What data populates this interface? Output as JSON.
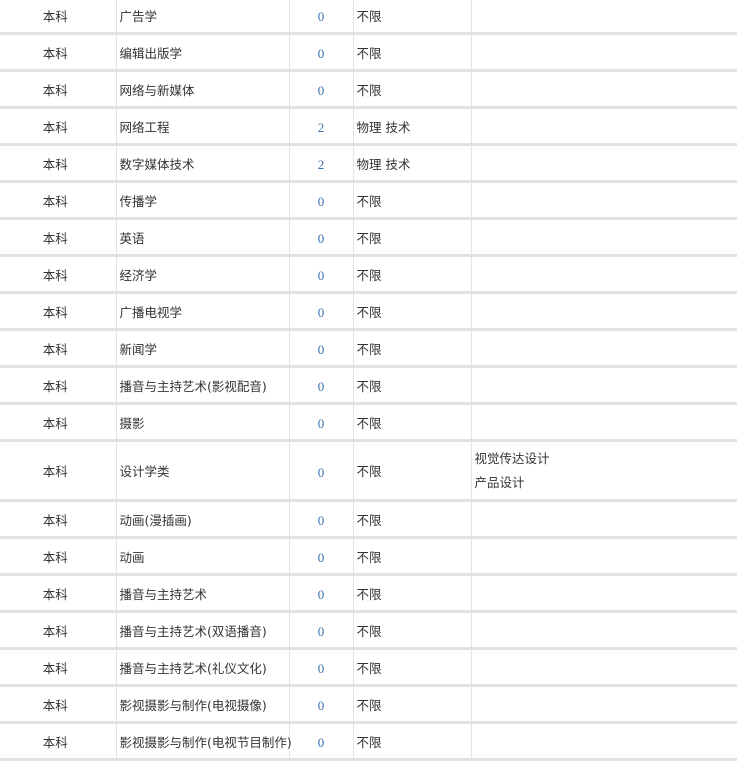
{
  "rows": [
    {
      "level": "本科",
      "major": "广告学",
      "count": "0",
      "subjects": "不限",
      "note": []
    },
    {
      "level": "本科",
      "major": "编辑出版学",
      "count": "0",
      "subjects": "不限",
      "note": []
    },
    {
      "level": "本科",
      "major": "网络与新媒体",
      "count": "0",
      "subjects": "不限",
      "note": []
    },
    {
      "level": "本科",
      "major": "网络工程",
      "count": "2",
      "subjects": "物理  技术",
      "note": []
    },
    {
      "level": "本科",
      "major": "数字媒体技术",
      "count": "2",
      "subjects": "物理  技术",
      "note": []
    },
    {
      "level": "本科",
      "major": "传播学",
      "count": "0",
      "subjects": "不限",
      "note": []
    },
    {
      "level": "本科",
      "major": "英语",
      "count": "0",
      "subjects": "不限",
      "note": []
    },
    {
      "level": "本科",
      "major": "经济学",
      "count": "0",
      "subjects": "不限",
      "note": []
    },
    {
      "level": "本科",
      "major": "广播电视学",
      "count": "0",
      "subjects": "不限",
      "note": []
    },
    {
      "level": "本科",
      "major": "新闻学",
      "count": "0",
      "subjects": "不限",
      "note": []
    },
    {
      "level": "本科",
      "major": "播音与主持艺术(影视配音)",
      "count": "0",
      "subjects": "不限",
      "note": []
    },
    {
      "level": "本科",
      "major": "摄影",
      "count": "0",
      "subjects": "不限",
      "note": []
    },
    {
      "level": "本科",
      "major": "设计学类",
      "count": "0",
      "subjects": "不限",
      "note": [
        "视觉传达设计",
        "产品设计"
      ]
    },
    {
      "level": "本科",
      "major": "动画(漫插画)",
      "count": "0",
      "subjects": "不限",
      "note": []
    },
    {
      "level": "本科",
      "major": "动画",
      "count": "0",
      "subjects": "不限",
      "note": []
    },
    {
      "level": "本科",
      "major": "播音与主持艺术",
      "count": "0",
      "subjects": "不限",
      "note": []
    },
    {
      "level": "本科",
      "major": "播音与主持艺术(双语播音)",
      "count": "0",
      "subjects": "不限",
      "note": []
    },
    {
      "level": "本科",
      "major": "播音与主持艺术(礼仪文化)",
      "count": "0",
      "subjects": "不限",
      "note": []
    },
    {
      "level": "本科",
      "major": "影视摄影与制作(电视摄像)",
      "count": "0",
      "subjects": "不限",
      "note": []
    },
    {
      "level": "本科",
      "major": "影视摄影与制作(电视节目制作)",
      "count": "0",
      "subjects": "不限",
      "note": []
    }
  ],
  "colors": {
    "count_text": "#3a6fb0",
    "row_separator": "#e1e1e1"
  }
}
